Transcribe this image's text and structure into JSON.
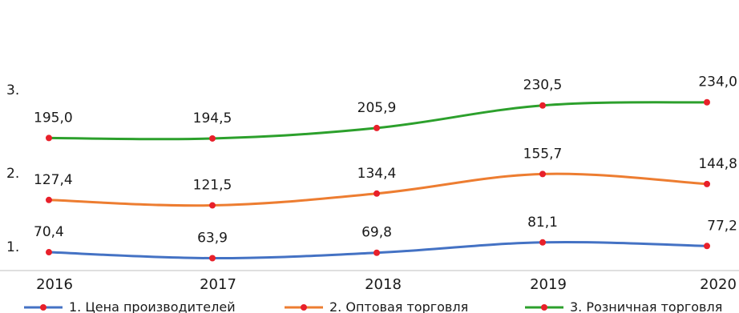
{
  "chart_data": {
    "type": "line",
    "categories": [
      "2016",
      "2017",
      "2018",
      "2019",
      "2020"
    ],
    "row_labels": [
      "3.",
      "2.",
      "1."
    ],
    "grid": false,
    "legend_position": "bottom",
    "series": [
      {
        "name": "1. Цена производителей",
        "values": [
          70.4,
          63.9,
          69.8,
          81.1,
          77.2
        ],
        "labels": [
          "70,4",
          "63,9",
          "69,8",
          "81,1",
          "77,2"
        ],
        "color": "#4472c4"
      },
      {
        "name": "2. Оптовая торговля",
        "values": [
          127.4,
          121.5,
          134.4,
          155.7,
          144.8
        ],
        "labels": [
          "127,4",
          "121,5",
          "134,4",
          "155,7",
          "144,8"
        ],
        "color": "#ed7d31"
      },
      {
        "name": "3. Розничная  торговля",
        "values": [
          195.0,
          194.5,
          205.9,
          230.5,
          234.0
        ],
        "labels": [
          "195,0",
          "194,5",
          "205,9",
          "230,5",
          "234,0"
        ],
        "color": "#2ca02c"
      }
    ],
    "marker_color": "#e8202a",
    "axis_color": "#bfbfbf"
  }
}
